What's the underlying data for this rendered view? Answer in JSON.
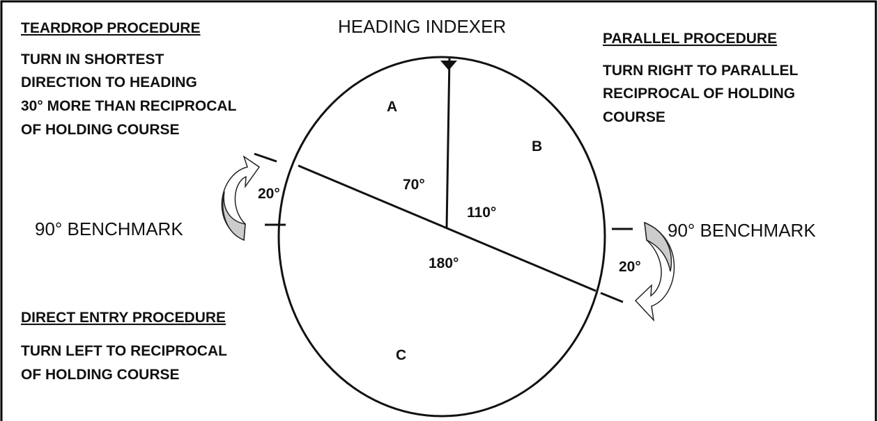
{
  "heading_indexer": "HEADING INDEXER",
  "procedures": [
    {
      "title": "TEARDROP PROCEDURE",
      "lines": [
        "TURN IN SHORTEST",
        "DIRECTION TO HEADING",
        "30° MORE THAN RECIPROCAL",
        "OF HOLDING COURSE"
      ]
    },
    {
      "title": "PARALLEL PROCEDURE",
      "lines": [
        "TURN RIGHT TO PARALLEL",
        "RECIPROCAL OF HOLDING",
        "COURSE"
      ]
    },
    {
      "title": "DIRECT ENTRY PROCEDURE",
      "lines": [
        "TURN LEFT TO RECIPROCAL",
        "OF HOLDING COURSE"
      ]
    }
  ],
  "sectors": [
    "A",
    "B",
    "C"
  ],
  "angles": [
    "70°",
    "110°",
    "180°",
    "20°",
    "20°"
  ],
  "benchmarks": [
    "90° BENCHMARK",
    "90° BENCHMARK"
  ]
}
